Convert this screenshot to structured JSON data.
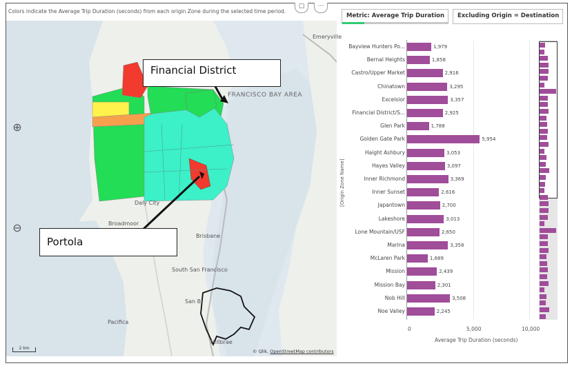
{
  "caption": "Colors indicate the Average Trip Duration (seconds) from each origin Zone during the selected time period.",
  "callouts": {
    "top": "Financial District",
    "bottom": "Portola"
  },
  "map_labels": {
    "emeryville": "Emeryville",
    "bay_area": "FRANCISCO BAY AREA",
    "daly_city": "Daly City",
    "broadmoor": "Broadmoor",
    "brisbane": "Brisbane",
    "south_sf": "South San Francisco",
    "san_bruno": "San Br",
    "pacifica": "Pacifica",
    "millbrae": "Millbrae"
  },
  "scale_label": "2 km",
  "attribution": {
    "prefix": "© Qlik,",
    "link": "OpenStreetMap contributors"
  },
  "tabs": {
    "metric": "Metric: Average Trip Duration",
    "filter": "Excluding Origin = Destination"
  },
  "icons": {
    "zoom_in": "zoom-in-icon",
    "zoom_out": "zoom-out-icon",
    "expand": "expand-icon",
    "menu": "menu-icon"
  },
  "colors": {
    "bar": "#a04d9a",
    "accent": "#2ecc71",
    "red": "#f23a2e",
    "green": "#22dd55",
    "teal": "#3cf0c8",
    "yellow": "#fff24a",
    "orange": "#f6a04d"
  },
  "chart_data": {
    "type": "bar",
    "orientation": "horizontal",
    "ylabel": "[Origin Zone Name]",
    "xlabel": "Average Trip Duration (seconds)",
    "xlim": [
      0,
      11000
    ],
    "xticks": [
      "0",
      "5,000",
      "10,000"
    ],
    "categories": [
      "Bayview Hunters Po...",
      "Bernal Heights",
      "Castro/Upper Market",
      "Chinatown",
      "Excelsior",
      "Financial District/S...",
      "Glen Park",
      "Golden Gate Park",
      "Haight Ashbury",
      "Hayes Valley",
      "Inner Richmond",
      "Inner Sunset",
      "Japantown",
      "Lakeshore",
      "Lone Mountain/USF",
      "Marina",
      "McLaren Park",
      "Mission",
      "Mission Bay",
      "Nob Hill",
      "Noe Valley"
    ],
    "values": [
      1979,
      1858,
      2916,
      3295,
      3357,
      2925,
      1788,
      5954,
      3053,
      3097,
      3369,
      2616,
      2700,
      3013,
      2650,
      3358,
      1689,
      2439,
      2301,
      3508,
      2245
    ],
    "value_labels": [
      "1,979",
      "1,858",
      "2,916",
      "3,295",
      "3,357",
      "2,925",
      "1,788",
      "5,954",
      "3,053",
      "3,097",
      "3,369",
      "2,616",
      "2,700",
      "3,013",
      "2,650",
      "3,358",
      "1,689",
      "2,439",
      "2,301",
      "3,508",
      "2,245"
    ]
  }
}
